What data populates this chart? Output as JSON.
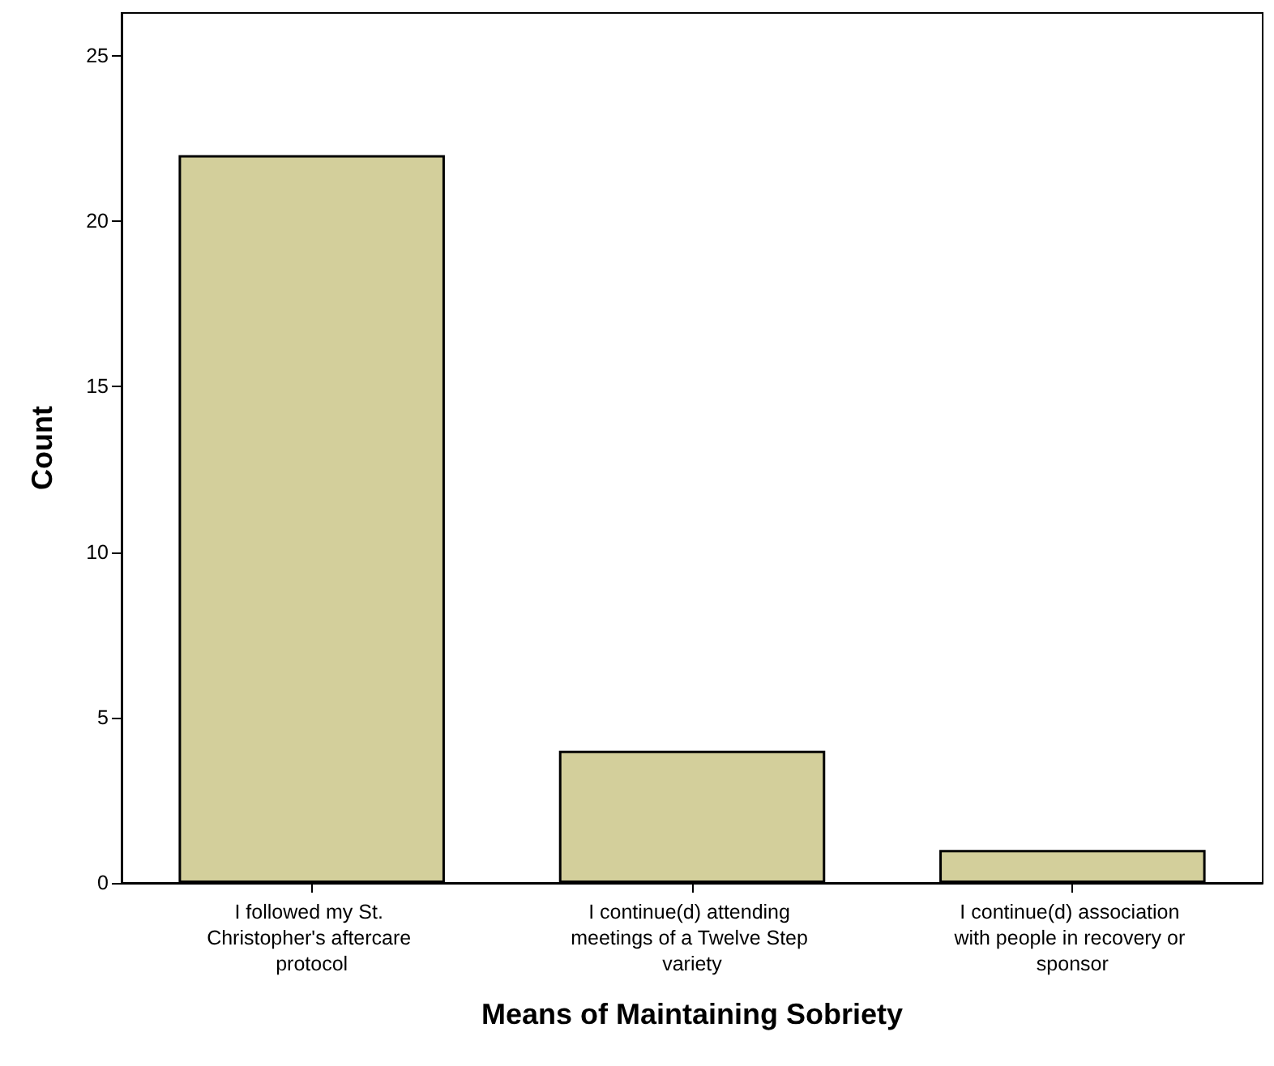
{
  "chart_data": {
    "type": "bar",
    "xlabel": "Means of Maintaining Sobriety",
    "ylabel": "Count",
    "categories": [
      "I followed my St. Christopher's aftercare protocol",
      "I continue(d) attending meetings of a Twelve Step variety",
      "I continue(d) association with people in recovery or sponsor"
    ],
    "values": [
      22,
      4,
      1
    ],
    "color": "#d3cf9b",
    "ylim": [
      0,
      26.3
    ],
    "yticks": [
      0,
      5,
      10,
      15,
      20,
      25
    ],
    "grid": false
  }
}
